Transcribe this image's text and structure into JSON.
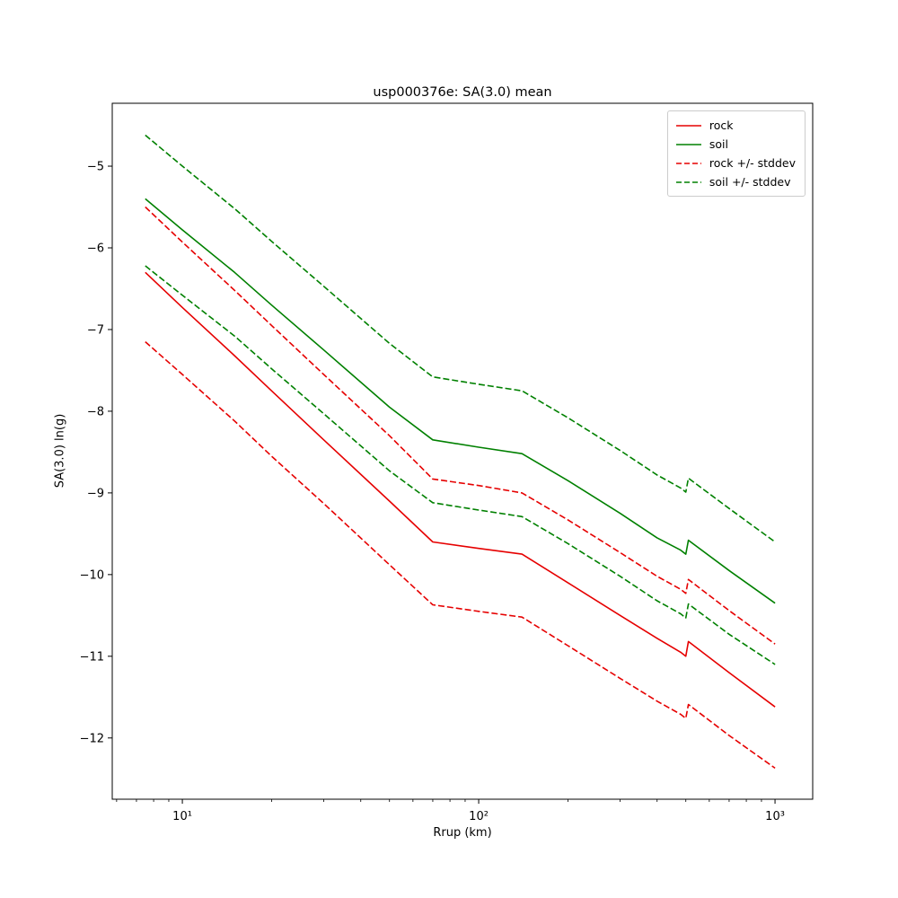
{
  "figure": {
    "title": "usp000376e: SA(3.0) mean",
    "xlabel": "Rrup (km)",
    "ylabel": "SA(3.0) ln(g)"
  },
  "chart_data": {
    "type": "line",
    "title": "usp000376e: SA(3.0) mean",
    "xlabel": "Rrup (km)",
    "ylabel": "SA(3.0) ln(g)",
    "x_scale": "log",
    "grid": false,
    "legend_position": "upper right",
    "xlim": [
      5.8,
      1340
    ],
    "ylim": [
      -12.75,
      -4.23
    ],
    "x_ticks": [
      {
        "value": 10,
        "label": "10¹"
      },
      {
        "value": 100,
        "label": "10²"
      },
      {
        "value": 1000,
        "label": "10³"
      }
    ],
    "x_minor_ticks": [
      6,
      7,
      8,
      9,
      20,
      30,
      40,
      50,
      60,
      70,
      80,
      90,
      200,
      300,
      400,
      500,
      600,
      700,
      800,
      900
    ],
    "y_ticks": [
      {
        "value": -5,
        "label": "−5"
      },
      {
        "value": -6,
        "label": "−6"
      },
      {
        "value": -7,
        "label": "−7"
      },
      {
        "value": -8,
        "label": "−8"
      },
      {
        "value": -9,
        "label": "−9"
      },
      {
        "value": -10,
        "label": "−10"
      },
      {
        "value": -11,
        "label": "−11"
      },
      {
        "value": -12,
        "label": "−12"
      }
    ],
    "x": [
      7.5,
      10,
      15,
      20,
      30,
      50,
      70,
      100,
      140,
      200,
      300,
      400,
      480,
      500,
      510,
      700,
      1000
    ],
    "series": [
      {
        "id": "rock-plus-stddev",
        "name": "rock + stddev",
        "color": "#e60000",
        "style": "dashed",
        "values": [
          -5.5,
          -5.93,
          -6.52,
          -6.95,
          -7.55,
          -8.3,
          -8.83,
          -8.91,
          -9.0,
          -9.33,
          -9.73,
          -10.02,
          -10.18,
          -10.23,
          -10.06,
          -10.44,
          -10.85
        ]
      },
      {
        "id": "rock-minus-stddev",
        "name": "rock - stddev",
        "color": "#e60000",
        "style": "dashed",
        "values": [
          -7.15,
          -7.55,
          -8.12,
          -8.55,
          -9.13,
          -9.88,
          -10.37,
          -10.45,
          -10.52,
          -10.87,
          -11.27,
          -11.55,
          -11.71,
          -11.76,
          -11.59,
          -11.97,
          -12.37
        ]
      },
      {
        "id": "soil-plus-stddev",
        "name": "soil + stddev",
        "color": "#008000",
        "style": "dashed",
        "values": [
          -4.62,
          -5.0,
          -5.52,
          -5.92,
          -6.47,
          -7.17,
          -7.58,
          -7.67,
          -7.75,
          -8.08,
          -8.48,
          -8.78,
          -8.94,
          -8.99,
          -8.82,
          -9.19,
          -9.6
        ]
      },
      {
        "id": "soil-minus-stddev",
        "name": "soil - stddev",
        "color": "#008000",
        "style": "dashed",
        "values": [
          -6.22,
          -6.58,
          -7.08,
          -7.48,
          -8.03,
          -8.73,
          -9.12,
          -9.21,
          -9.29,
          -9.62,
          -10.02,
          -10.32,
          -10.48,
          -10.53,
          -10.36,
          -10.73,
          -11.1
        ]
      },
      {
        "id": "rock",
        "name": "rock",
        "color": "#e60000",
        "style": "solid",
        "values": [
          -6.3,
          -6.73,
          -7.32,
          -7.75,
          -8.35,
          -9.1,
          -9.6,
          -9.68,
          -9.75,
          -10.1,
          -10.5,
          -10.78,
          -10.95,
          -11.0,
          -10.82,
          -11.2,
          -11.62
        ]
      },
      {
        "id": "soil",
        "name": "soil",
        "color": "#008000",
        "style": "solid",
        "values": [
          -5.4,
          -5.78,
          -6.3,
          -6.7,
          -7.25,
          -7.95,
          -8.35,
          -8.44,
          -8.52,
          -8.85,
          -9.25,
          -9.55,
          -9.7,
          -9.75,
          -9.58,
          -9.95,
          -10.35
        ]
      }
    ],
    "legend": [
      {
        "label": "rock",
        "color": "#e60000",
        "style": "solid"
      },
      {
        "label": "soil",
        "color": "#008000",
        "style": "solid"
      },
      {
        "label": "rock +/- stddev",
        "color": "#e60000",
        "style": "dashed"
      },
      {
        "label": "soil +/- stddev",
        "color": "#008000",
        "style": "dashed"
      }
    ]
  }
}
